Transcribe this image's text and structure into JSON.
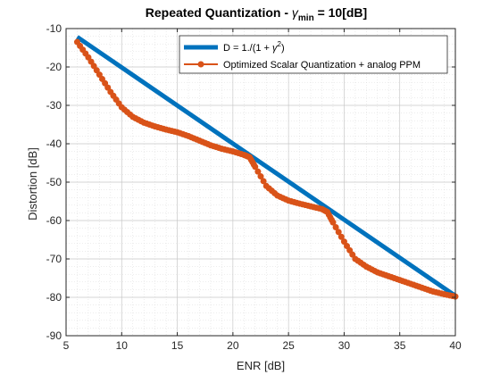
{
  "chart_data": {
    "type": "line",
    "title": {
      "prefix": "Repeated Quantization - ",
      "symbol": "γ",
      "subscript": "min",
      "suffix": " = 10[dB]"
    },
    "xlabel": "ENR [dB]",
    "ylabel": "Distortion [dB]",
    "xlim": [
      5,
      40
    ],
    "ylim": [
      -90,
      -10
    ],
    "xticks": [
      5,
      10,
      15,
      20,
      25,
      30,
      35,
      40
    ],
    "yticks": [
      -90,
      -80,
      -70,
      -60,
      -50,
      -40,
      -30,
      -20,
      -10
    ],
    "grid": true,
    "minor_grid": true,
    "legend_position": "top-right",
    "series": [
      {
        "name": "D = 1./(1 + γ ^2)",
        "legend_parts": {
          "main": "D = 1./(1 + ",
          "sym": "γ",
          "sup": "2",
          "end": ")"
        },
        "color": "#0072BD",
        "style": "line",
        "x": [
          6,
          40
        ],
        "y": [
          -12.2,
          -79.6
        ]
      },
      {
        "name": "Optimized Scalar Quantization + analog PPM",
        "color": "#D95319",
        "style": "line-marker",
        "x": [
          6,
          7,
          8,
          9,
          10,
          11,
          12,
          13,
          14,
          15,
          16,
          17,
          18,
          19,
          20,
          21,
          21.5,
          22,
          23,
          24,
          25,
          26,
          27,
          28,
          28.5,
          29,
          30,
          31,
          32,
          33,
          34,
          35,
          36,
          37,
          38,
          39,
          40
        ],
        "y": [
          -13.5,
          -17.5,
          -22,
          -26.5,
          -30.5,
          -33,
          -34.5,
          -35.5,
          -36.3,
          -37,
          -38,
          -39.2,
          -40.4,
          -41.3,
          -42,
          -42.9,
          -43.5,
          -46,
          -51,
          -53.5,
          -54.8,
          -55.6,
          -56.3,
          -57,
          -57.8,
          -60.5,
          -65.5,
          -70,
          -72,
          -73.5,
          -74.5,
          -75.5,
          -76.5,
          -77.5,
          -78.5,
          -79.2,
          -79.8
        ]
      }
    ]
  }
}
